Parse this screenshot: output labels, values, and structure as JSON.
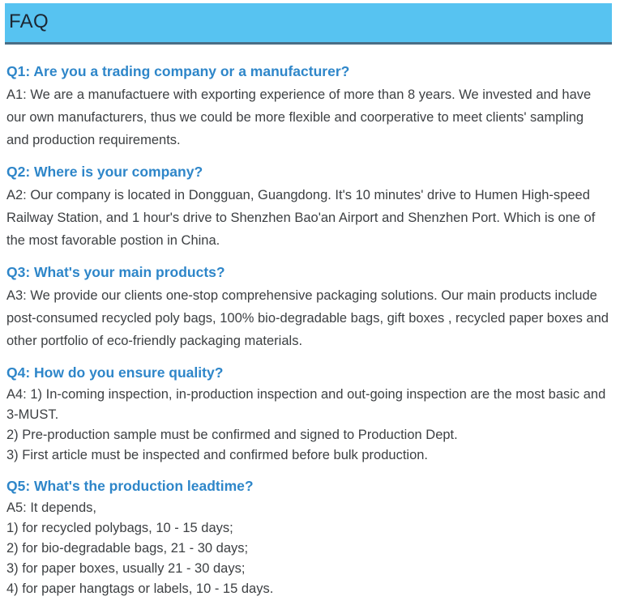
{
  "colors": {
    "banner_bg": "#57c3f1",
    "banner_border": "#4a6d85",
    "question_color": "#2e86c9",
    "answer_color": "#3d4043",
    "title_color": "#1c2733"
  },
  "faq": {
    "title": "FAQ",
    "items": [
      {
        "question": "Q1: Are you a trading company or a manufacturer?",
        "answer_lines": [
          "A1: We are a manufactuere with exporting experience of more than 8 years. We invested and have our own manufacturers, thus we could be more flexible and coorperative to meet clients' sampling and production requirements."
        ]
      },
      {
        "question": "Q2: Where is your company?",
        "answer_lines": [
          "A2: Our company is located in Dongguan, Guangdong. It's 10 minutes' drive to Humen High-speed Railway Station, and 1 hour's drive to Shenzhen Bao'an Airport and Shenzhen Port. Which is one of the most favorable postion in China."
        ]
      },
      {
        "question": "Q3: What's your main products?",
        "answer_lines": [
          "A3: We provide our clients one-stop comprehensive packaging solutions. Our main products include post-consumed recycled poly bags, 100% bio-degradable bags, gift boxes , recycled paper boxes and other portfolio of eco-friendly packaging materials."
        ]
      },
      {
        "question": "Q4: How do you ensure quality?",
        "answer_lines": [
          "A4: 1) In-coming inspection, in-production inspection and out-going inspection are the most basic and 3-MUST.",
          "2) Pre-production sample must be confirmed and signed to Production Dept.",
          "3) First article must be inspected and confirmed before bulk production."
        ]
      },
      {
        "question": "Q5: What's the production leadtime?",
        "answer_lines": [
          "A5: It depends,",
          "1) for recycled polybags, 10 - 15 days;",
          "2) for bio-degradable bags, 21 - 30 days;",
          "3) for paper boxes, usually 21 - 30 days;",
          "4) for paper hangtags or labels, 10 - 15 days."
        ]
      }
    ]
  }
}
